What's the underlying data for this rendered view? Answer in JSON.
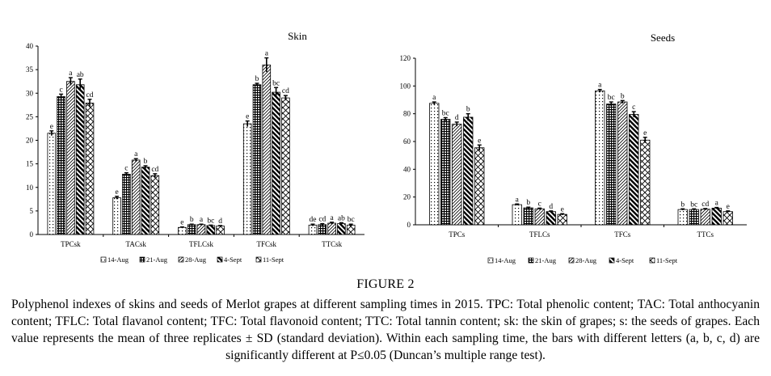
{
  "chart_data": [
    {
      "type": "bar",
      "title": "Skin",
      "categories": [
        "TPCsk",
        "TACsk",
        "TFLCsk",
        "TFCsk",
        "TTCsk"
      ],
      "ylim": [
        0,
        40
      ],
      "yticks": [
        0,
        5,
        10,
        15,
        20,
        25,
        30,
        35,
        40
      ],
      "grid": false,
      "legend_position": "bottom",
      "series": [
        {
          "name": "14-Aug",
          "pattern": "dots",
          "values": [
            21.5,
            7.8,
            1.5,
            23.5,
            2.0
          ],
          "errors": [
            0.5,
            0.3,
            0.1,
            0.6,
            0.2
          ],
          "letters": [
            "e",
            "e",
            "e",
            "e",
            "de"
          ]
        },
        {
          "name": "21-Aug",
          "pattern": "grid",
          "values": [
            29.3,
            12.8,
            2.1,
            31.8,
            2.1
          ],
          "errors": [
            0.5,
            0.3,
            0.1,
            0.3,
            0.2
          ],
          "letters": [
            "c",
            "c",
            "b",
            "b",
            "cd"
          ]
        },
        {
          "name": "28-Aug",
          "pattern": "hatch",
          "values": [
            32.5,
            15.8,
            2.1,
            36.0,
            2.4
          ],
          "errors": [
            0.8,
            0.3,
            0.1,
            1.5,
            0.2
          ],
          "letters": [
            "a",
            "a",
            "a",
            "a",
            "a"
          ]
        },
        {
          "name": "4-Sept",
          "pattern": "diagonal",
          "values": [
            31.8,
            14.3,
            1.9,
            30.2,
            2.3
          ],
          "errors": [
            1.2,
            0.3,
            0.1,
            1.0,
            0.2
          ],
          "letters": [
            "ab",
            "b",
            "bc",
            "bc",
            "ab"
          ]
        },
        {
          "name": "11-Sept",
          "pattern": "crosshatch",
          "values": [
            27.9,
            12.5,
            1.8,
            29.0,
            2.0
          ],
          "errors": [
            0.8,
            0.4,
            0.1,
            0.5,
            0.2
          ],
          "letters": [
            "cd",
            "cd",
            "d",
            "cd",
            "bc"
          ]
        }
      ]
    },
    {
      "type": "bar",
      "title": "Seeds",
      "categories": [
        "TPCs",
        "TFLCs",
        "TFCs",
        "TTCs"
      ],
      "ylim": [
        0,
        120
      ],
      "yticks": [
        0,
        20,
        40,
        60,
        80,
        100,
        120
      ],
      "grid": false,
      "legend_position": "bottom",
      "series": [
        {
          "name": "14-Aug",
          "pattern": "dots",
          "values": [
            87.5,
            14.5,
            96.5,
            11.0
          ],
          "errors": [
            1.0,
            0.5,
            1.0,
            0.5
          ],
          "letters": [
            "a",
            "a",
            "a",
            "b"
          ]
        },
        {
          "name": "21-Aug",
          "pattern": "grid",
          "values": [
            76.0,
            12.2,
            87.0,
            11.0
          ],
          "errors": [
            1.2,
            0.5,
            1.5,
            0.5
          ],
          "letters": [
            "bc",
            "b",
            "bc",
            "bc"
          ]
        },
        {
          "name": "28-Aug",
          "pattern": "hatch",
          "values": [
            72.5,
            11.5,
            88.5,
            11.2
          ],
          "errors": [
            1.5,
            0.5,
            1.0,
            0.5
          ],
          "letters": [
            "d",
            "c",
            "b",
            "cd"
          ]
        },
        {
          "name": "4-Sept",
          "pattern": "diagonal",
          "values": [
            77.5,
            9.5,
            79.5,
            12.0
          ],
          "errors": [
            2.5,
            0.5,
            2.0,
            0.5
          ],
          "letters": [
            "b",
            "d",
            "c",
            "a"
          ]
        },
        {
          "name": "11-Sept",
          "pattern": "crosshatch",
          "values": [
            55.5,
            7.5,
            61.0,
            9.5
          ],
          "errors": [
            2.0,
            0.5,
            2.0,
            0.5
          ],
          "letters": [
            "e",
            "e",
            "e",
            "e"
          ]
        }
      ]
    }
  ],
  "caption": {
    "label": "FIGURE 2",
    "text": "Polyphenol indexes of skins and seeds of Merlot grapes at different sampling times in 2015. TPC: Total phenolic content; TAC: Total anthocyanin content; TFLC: Total flavanol content; TFC: Total flavonoid content; TTC: Total tannin content; sk: the skin of grapes; s: the seeds of grapes. Each value represents the mean of three replicates ± SD (standard deviation). Within each sampling time, the bars with different letters (a, b, c, d) are significantly different at P≤0.05 (Duncan’s multiple range test)."
  }
}
